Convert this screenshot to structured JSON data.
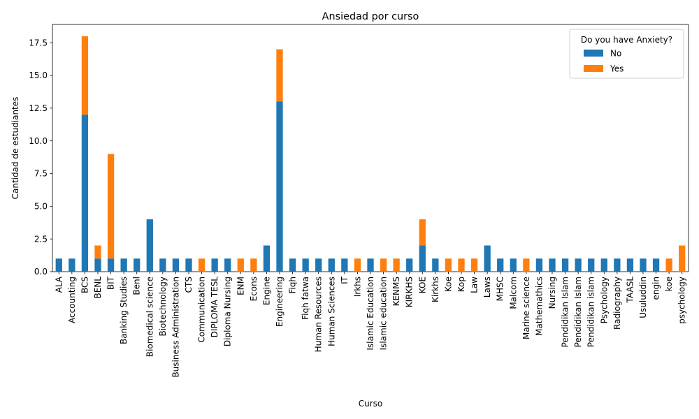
{
  "chart_data": {
    "type": "bar",
    "stacked": true,
    "title": "Ansiedad por curso",
    "xlabel": "Curso",
    "ylabel": "Cantidad de estudiantes",
    "ylim": [
      0,
      18.9
    ],
    "yticks": [
      0.0,
      2.5,
      5.0,
      7.5,
      10.0,
      12.5,
      15.0,
      17.5
    ],
    "ytick_labels": [
      "0.0",
      "2.5",
      "5.0",
      "7.5",
      "10.0",
      "12.5",
      "15.0",
      "17.5"
    ],
    "legend": {
      "title": "Do you have Anxiety?",
      "placement": "top-right"
    },
    "categories": [
      "ALA",
      "Accounting",
      "BCS",
      "BENL",
      "BIT",
      "Banking Studies",
      "Benl",
      "Biomedical science",
      "Biotechnology",
      "Business Administration",
      "CTS",
      "Communication",
      "DIPLOMA TESL",
      "Diploma Nursing",
      "ENM",
      "Econs",
      "Engine",
      "Engineering",
      "Fiqh",
      "Fiqh fatwa",
      "Human Resources",
      "Human Sciences",
      "IT",
      "Irkhs",
      "Islamic Education",
      "Islamic education",
      "KENMS",
      "KIRKHS",
      "KOE",
      "Kirkhs",
      "Koe",
      "Kop",
      "Law",
      "Laws",
      "MHSC",
      "Malcom",
      "Marine science",
      "Mathemathics",
      "Nursing",
      "Pendidikan Islam",
      "Pendidikan Islam ",
      "Pendidikan islam",
      "Psychology",
      "Radiography",
      "TAASL",
      "Usuluddin",
      "engin",
      "koe",
      "psychology"
    ],
    "series": [
      {
        "name": "No",
        "color": "#1f77b4",
        "values": [
          1,
          1,
          12,
          1,
          1,
          1,
          1,
          4,
          1,
          1,
          1,
          0,
          1,
          1,
          0,
          0,
          2,
          13,
          1,
          1,
          1,
          1,
          1,
          0,
          1,
          0,
          0,
          1,
          2,
          1,
          0,
          0,
          0,
          2,
          1,
          1,
          0,
          1,
          1,
          1,
          1,
          1,
          1,
          1,
          1,
          1,
          1,
          0,
          0
        ]
      },
      {
        "name": "Yes",
        "color": "#ff7f0e",
        "values": [
          0,
          0,
          6,
          1,
          8,
          0,
          0,
          0,
          0,
          0,
          0,
          1,
          0,
          0,
          1,
          1,
          0,
          4,
          0,
          0,
          0,
          0,
          0,
          1,
          0,
          1,
          1,
          0,
          2,
          0,
          1,
          1,
          1,
          0,
          0,
          0,
          1,
          0,
          0,
          0,
          0,
          0,
          0,
          0,
          0,
          0,
          0,
          1,
          2
        ]
      }
    ]
  }
}
